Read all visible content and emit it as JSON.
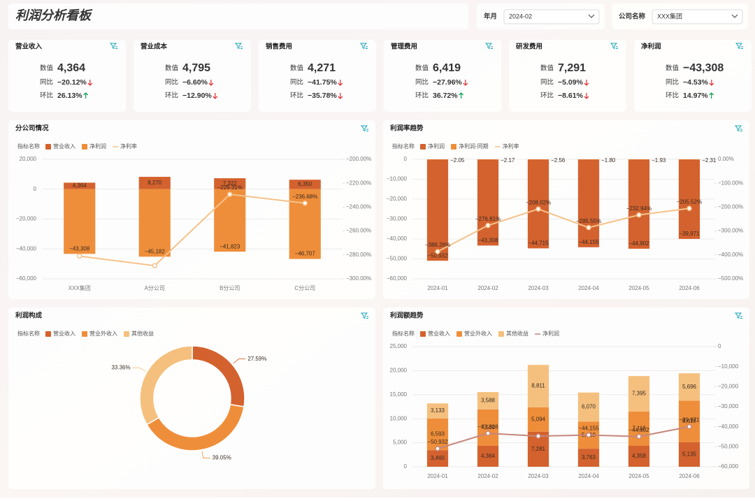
{
  "header": {
    "title": "利润分析看板",
    "filters": [
      {
        "label": "年月",
        "value": "2024-02"
      },
      {
        "label": "公司名称",
        "value": "XXX集团"
      }
    ]
  },
  "kpis": [
    {
      "title": "营业收入",
      "rows": [
        {
          "label": "数值",
          "value": "4,364"
        },
        {
          "label": "同比",
          "value": "−20.12%"
        },
        {
          "label": "环比",
          "value": "26.13%"
        }
      ]
    },
    {
      "title": "营业成本",
      "rows": [
        {
          "label": "数值",
          "value": "4,795"
        },
        {
          "label": "同比",
          "value": "−6.60%"
        },
        {
          "label": "环比",
          "value": "−12.90%"
        }
      ]
    },
    {
      "title": "销售费用",
      "rows": [
        {
          "label": "数值",
          "value": "4,271"
        },
        {
          "label": "同比",
          "value": "−41.75%"
        },
        {
          "label": "环比",
          "value": "−35.78%"
        }
      ]
    },
    {
      "title": "管理费用",
      "rows": [
        {
          "label": "数值",
          "value": "6,419"
        },
        {
          "label": "同比",
          "value": "−27.96%"
        },
        {
          "label": "环比",
          "value": "36.72%"
        }
      ]
    },
    {
      "title": "研发费用",
      "rows": [
        {
          "label": "数值",
          "value": "7,291"
        },
        {
          "label": "同比",
          "value": "−5.09%"
        },
        {
          "label": "环比",
          "value": "−8.61%"
        }
      ]
    },
    {
      "title": "净利润",
      "rows": [
        {
          "label": "数值",
          "value": "−43,308"
        },
        {
          "label": "同比",
          "value": "−4.53%"
        },
        {
          "label": "环比",
          "value": "14.97%"
        }
      ]
    }
  ],
  "chart_data": [
    {
      "type": "bar-line",
      "title": "分公司情况",
      "legend_title": "指标名称",
      "stacked": false,
      "grid": true,
      "categories": [
        "XXX集团",
        "A分公司",
        "B分公司",
        "C分公司"
      ],
      "series": [
        {
          "name": "营业收入",
          "color": "#d4622e",
          "values": [
            4364,
            8270,
            7322,
            6350
          ],
          "value_labels": [
            "4,364",
            "8,270",
            "7,322",
            "6,350"
          ]
        },
        {
          "name": "净利润",
          "color": "#ef8e3a",
          "values": [
            -43308,
            -45182,
            -41823,
            -46707
          ],
          "value_labels": [
            "−43,308",
            "−45,182",
            "−41,823",
            "−46,707"
          ]
        },
        {
          "name": "净利率",
          "type": "line",
          "axis": "y2",
          "color": "#f5c28a",
          "values": [
            -281,
            -289,
            -229.31,
            -236.68
          ],
          "value_labels": [
            null,
            null,
            "−229.31%",
            "−236.68%"
          ]
        }
      ],
      "ylim": [
        -60000,
        20000
      ],
      "yticks": [
        {
          "value": 20000,
          "label": "20,000"
        },
        0,
        {
          "value": -20000,
          "label": "−20,000"
        },
        {
          "value": -40000,
          "label": "−40,000"
        },
        {
          "value": -60000,
          "label": "−60,000"
        }
      ],
      "y2lim": [
        -300,
        -200
      ],
      "y2ticks": [
        {
          "value": -200,
          "label": "−200.00%"
        },
        {
          "value": -220,
          "label": "−220.00%"
        },
        {
          "value": -240,
          "label": "−240.00%"
        },
        {
          "value": -260,
          "label": "−260.00%"
        },
        {
          "value": -280,
          "label": "−280.00%"
        },
        {
          "value": -300,
          "label": "−300.00%"
        }
      ]
    },
    {
      "type": "bar-line",
      "title": "利润率趋势",
      "legend_title": "指标名称",
      "stacked": false,
      "grid": true,
      "categories": [
        "2024-01",
        "2024-02",
        "2024-03",
        "2024-04",
        "2024-05",
        "2024-06"
      ],
      "series": [
        {
          "name": "净利润",
          "color": "#d4622e",
          "values": [
            -50932,
            -43308,
            -44715,
            -44155,
            -44902,
            -39971
          ],
          "value_labels": [
            "−50,932",
            "−43,308",
            "−44,715",
            "−44,155",
            "−44,902",
            "−39,971"
          ]
        },
        {
          "name": "净利润-同期",
          "color": "#ef8e3a",
          "values": [
            -2.05,
            -2.17,
            -2.56,
            -1.8,
            -1.93,
            -2.31
          ],
          "value_labels": [
            "−2.05",
            "−2.17",
            "−2.56",
            "−1.80",
            "−1.93",
            "−2.31"
          ]
        },
        {
          "name": "净利率",
          "type": "line",
          "axis": "y2",
          "color": "#f5c28a",
          "values": [
            -386.26,
            -276.81,
            -208.02,
            -285.55,
            -232.94,
            -205.52
          ],
          "value_labels": [
            "−386.26%",
            "−276.81%",
            "−208.02%",
            "−285.55%",
            "−232.94%",
            "−205.52%"
          ]
        }
      ],
      "ylim": [
        -60000,
        0
      ],
      "yticks": [
        0,
        {
          "value": -10000,
          "label": "−10,000"
        },
        {
          "value": -20000,
          "label": "−20,000"
        },
        {
          "value": -30000,
          "label": "−30,000"
        },
        {
          "value": -40000,
          "label": "−40,000"
        },
        {
          "value": -50000,
          "label": "−50,000"
        },
        {
          "value": -60000,
          "label": "−60,000"
        }
      ],
      "y2lim": [
        -500,
        0
      ],
      "y2ticks": [
        {
          "value": 0,
          "label": "0.00%"
        },
        {
          "value": -100,
          "label": "−100.00%"
        },
        {
          "value": -200,
          "label": "−200.00%"
        },
        {
          "value": -300,
          "label": "−300.00%"
        },
        {
          "value": -400,
          "label": "−400.00%"
        },
        {
          "value": -500,
          "label": "−500.00%"
        }
      ]
    },
    {
      "type": "pie",
      "title": "利润构成",
      "legend_title": "指标名称",
      "categories": [
        "营业收入",
        "营业外收入",
        "其他收益"
      ],
      "colors": [
        "#d4622e",
        "#ef8e3a",
        "#f5c07e"
      ],
      "values": [
        27.59,
        39.05,
        33.36
      ],
      "value_labels": [
        "27.59%",
        "39.05%",
        "33.36%"
      ]
    },
    {
      "type": "bar-line",
      "title": "利润额趋势",
      "legend_title": "指标名称",
      "stacked": true,
      "grid": true,
      "categories": [
        "2024-01",
        "2024-02",
        "2024-03",
        "2024-04",
        "2024-05",
        "2024-06"
      ],
      "series": [
        {
          "name": "营业收入",
          "color": "#d4622e",
          "values": [
            3460,
            4364,
            7281,
            3763,
            4358,
            5135
          ],
          "value_labels": [
            "3,460",
            "4,364",
            "7,281",
            "3,763",
            "4,358",
            "5,135"
          ]
        },
        {
          "name": "营业外收入",
          "color": "#ef8e3a",
          "values": [
            6593,
            7581,
            5094,
            5610,
            7118,
            8618
          ],
          "value_labels": [
            "6,593",
            "7,581",
            "5,094",
            "5,610",
            "7,118",
            "8,618"
          ]
        },
        {
          "name": "其他收益",
          "color": "#f5c07e",
          "values": [
            3133,
            3588,
            8811,
            6070,
            7395,
            5696
          ],
          "value_labels": [
            "3,133",
            "3,588",
            "8,811",
            "6,070",
            "7,395",
            "5,696"
          ]
        },
        {
          "name": "净利润",
          "type": "line",
          "axis": "y2",
          "color": "#c4877c",
          "values": [
            -50932,
            -43308,
            -44715,
            -44155,
            -44902,
            -39971
          ],
          "value_labels": [
            "−50,932",
            "−43,308",
            null,
            "−44,155",
            "−44,902",
            "−39,971"
          ]
        }
      ],
      "ylim": [
        0,
        25000
      ],
      "yticks": [
        0,
        {
          "value": 5000,
          "label": "5,000"
        },
        {
          "value": 10000,
          "label": "10,000"
        },
        {
          "value": 15000,
          "label": "15,000"
        },
        {
          "value": 20000,
          "label": "20,000"
        },
        {
          "value": 25000,
          "label": "25,000"
        }
      ],
      "y2lim": [
        -60000,
        0
      ],
      "y2ticks": [
        0,
        {
          "value": -10000,
          "label": "−10,000"
        },
        {
          "value": -20000,
          "label": "−20,000"
        },
        {
          "value": -30000,
          "label": "−30,000"
        },
        {
          "value": -40000,
          "label": "−40,000"
        },
        {
          "value": -50000,
          "label": "−50,000"
        },
        {
          "value": -60000,
          "label": "−60,000"
        }
      ]
    }
  ]
}
